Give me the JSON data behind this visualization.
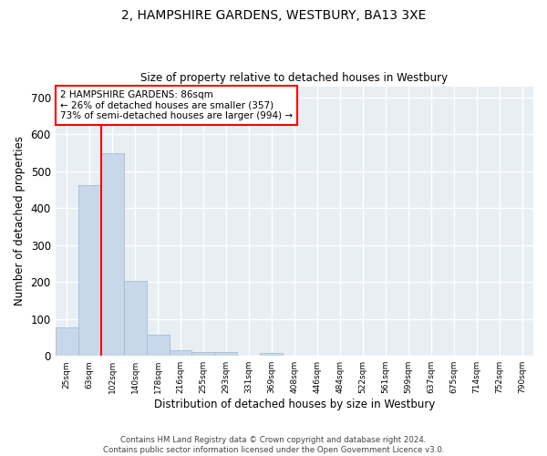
{
  "title": "2, HAMPSHIRE GARDENS, WESTBURY, BA13 3XE",
  "subtitle": "Size of property relative to detached houses in Westbury",
  "xlabel": "Distribution of detached houses by size in Westbury",
  "ylabel": "Number of detached properties",
  "bar_color": "#c8d8ea",
  "bar_edge_color": "#9ab8cc",
  "background_color": "#e8eef4",
  "grid_color": "#ffffff",
  "categories": [
    "25sqm",
    "63sqm",
    "102sqm",
    "140sqm",
    "178sqm",
    "216sqm",
    "255sqm",
    "293sqm",
    "331sqm",
    "369sqm",
    "408sqm",
    "446sqm",
    "484sqm",
    "522sqm",
    "561sqm",
    "599sqm",
    "637sqm",
    "675sqm",
    "714sqm",
    "752sqm",
    "790sqm"
  ],
  "values": [
    78,
    462,
    548,
    204,
    57,
    15,
    10,
    10,
    0,
    8,
    0,
    0,
    0,
    0,
    0,
    0,
    0,
    0,
    0,
    0,
    0
  ],
  "ylim": [
    0,
    730
  ],
  "yticks": [
    0,
    100,
    200,
    300,
    400,
    500,
    600,
    700
  ],
  "property_label": "2 HAMPSHIRE GARDENS: 86sqm",
  "annotation_line1": "← 26% of detached houses are smaller (357)",
  "annotation_line2": "73% of semi-detached houses are larger (994) →",
  "vline_x": 1.5,
  "footer_line1": "Contains HM Land Registry data © Crown copyright and database right 2024.",
  "footer_line2": "Contains public sector information licensed under the Open Government Licence v3.0."
}
